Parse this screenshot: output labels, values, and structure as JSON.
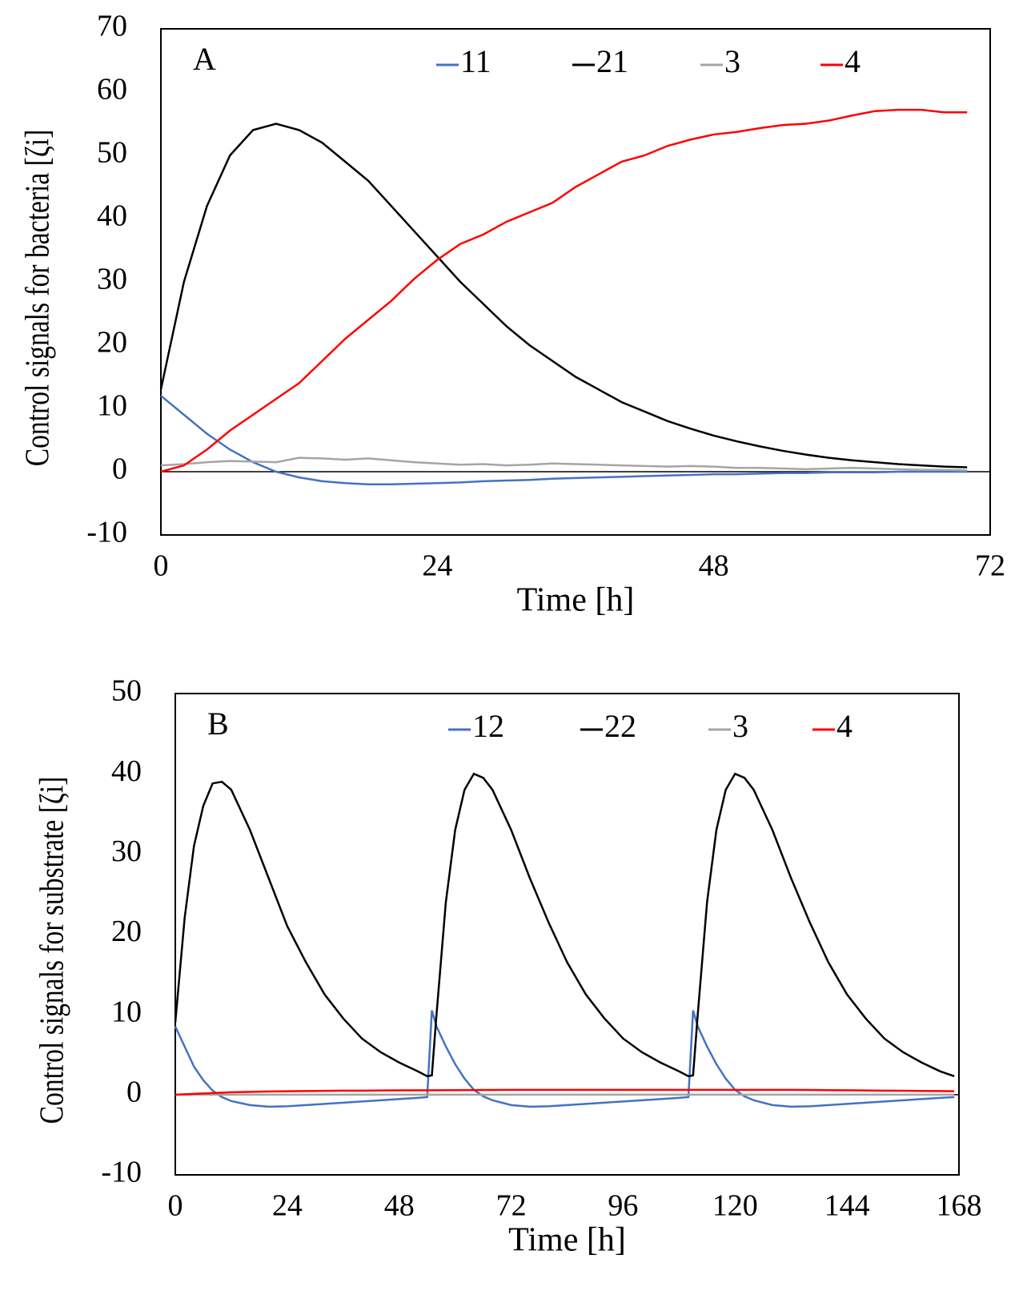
{
  "chart_data": [
    {
      "type": "line",
      "panel_label": "A",
      "xlabel": "Time [h]",
      "ylabel": "Control signals for bacteria [ζi]",
      "x": [
        0,
        2,
        4,
        6,
        8,
        10,
        12,
        14,
        16,
        18,
        20,
        22,
        24,
        26,
        28,
        30,
        32,
        34,
        36,
        38,
        40,
        42,
        44,
        46,
        48,
        50,
        52,
        54,
        56,
        58,
        60,
        62,
        64,
        66,
        68,
        70
      ],
      "series": [
        {
          "name": "11",
          "color": "#4472c4",
          "values": [
            12,
            9,
            6,
            3.5,
            1.5,
            0,
            -0.9,
            -1.5,
            -1.8,
            -2,
            -2,
            -1.9,
            -1.8,
            -1.7,
            -1.5,
            -1.4,
            -1.3,
            -1.1,
            -1,
            -0.9,
            -0.8,
            -0.7,
            -0.6,
            -0.5,
            -0.4,
            -0.4,
            -0.3,
            -0.2,
            -0.2,
            -0.1,
            -0.1,
            -0.1,
            0,
            0,
            0,
            0
          ]
        },
        {
          "name": "21",
          "color": "#000000",
          "values": [
            13,
            30,
            42,
            50,
            54,
            55,
            54,
            52,
            49,
            46,
            42,
            38,
            34,
            30,
            26.5,
            23,
            20,
            17.5,
            15,
            13,
            11,
            9.5,
            8,
            6.8,
            5.7,
            4.8,
            4,
            3.3,
            2.7,
            2.2,
            1.8,
            1.5,
            1.2,
            1,
            0.8,
            0.7
          ]
        },
        {
          "name": "3",
          "color": "#a5a5a5",
          "values": [
            1,
            1.2,
            1.5,
            1.7,
            1.6,
            1.5,
            2.2,
            2.1,
            1.9,
            2.1,
            1.8,
            1.5,
            1.3,
            1.1,
            1.2,
            1,
            1.1,
            1.3,
            1.2,
            1.1,
            1,
            0.9,
            0.8,
            0.9,
            0.8,
            0.6,
            0.6,
            0.5,
            0.4,
            0.5,
            0.6,
            0.5,
            0.4,
            0.3,
            0.3,
            0.2
          ]
        },
        {
          "name": "4",
          "color": "#ff0000",
          "values": [
            0,
            1,
            3.5,
            6.5,
            9,
            11.5,
            14,
            17.5,
            21,
            24,
            27,
            30.5,
            33.5,
            36,
            37.5,
            39.5,
            41,
            42.5,
            45,
            47,
            49,
            50,
            51.5,
            52.5,
            53.3,
            53.7,
            54.3,
            54.8,
            55,
            55.5,
            56.3,
            57,
            57.2,
            57.2,
            56.8,
            56.8
          ]
        }
      ],
      "xlim": [
        0,
        72
      ],
      "xticks": [
        0,
        24,
        48,
        72
      ],
      "ylim": [
        -10,
        70
      ],
      "yticks": [
        -10,
        0,
        10,
        20,
        30,
        40,
        50,
        60,
        70
      ]
    },
    {
      "type": "line",
      "panel_label": "B",
      "xlabel": "Time [h]",
      "ylabel": "Control signals for substrate [ζi]",
      "x": [
        0,
        2,
        4,
        6,
        8,
        10,
        12,
        16,
        20,
        24,
        28,
        32,
        36,
        40,
        44,
        48,
        52,
        54,
        55,
        56,
        58,
        60,
        62,
        64,
        66,
        68,
        72,
        76,
        80,
        84,
        88,
        92,
        96,
        100,
        104,
        108,
        110,
        111,
        112,
        114,
        116,
        118,
        120,
        122,
        124,
        128,
        132,
        136,
        140,
        144,
        148,
        152,
        156,
        160,
        164,
        167
      ],
      "series": [
        {
          "name": "12",
          "color": "#4472c4",
          "values": [
            8.5,
            6,
            3.5,
            1.8,
            0.5,
            -0.3,
            -0.8,
            -1.3,
            -1.5,
            -1.45,
            -1.3,
            -1.15,
            -1,
            -0.85,
            -0.7,
            -0.55,
            -0.4,
            -0.3,
            10.5,
            8.5,
            6,
            3.8,
            2,
            0.6,
            -0.2,
            -0.7,
            -1.3,
            -1.5,
            -1.45,
            -1.3,
            -1.15,
            -1,
            -0.85,
            -0.7,
            -0.55,
            -0.4,
            -0.3,
            10.5,
            8.5,
            6,
            3.8,
            2,
            0.6,
            -0.2,
            -0.7,
            -1.3,
            -1.5,
            -1.45,
            -1.3,
            -1.15,
            -1,
            -0.85,
            -0.7,
            -0.55,
            -0.4,
            -0.3
          ]
        },
        {
          "name": "22",
          "color": "#000000",
          "values": [
            9,
            22,
            31,
            36,
            38.8,
            39,
            38,
            33,
            27,
            21,
            16.5,
            12.5,
            9.5,
            7,
            5.3,
            4,
            2.9,
            2.3,
            2.4,
            10,
            24,
            33,
            38,
            40,
            39.5,
            38,
            33,
            27,
            21.5,
            16.5,
            12.5,
            9.5,
            7,
            5.3,
            4,
            2.9,
            2.3,
            2.4,
            10,
            24,
            33,
            38,
            40,
            39.5,
            38,
            33,
            27,
            21.5,
            16.5,
            12.5,
            9.5,
            7,
            5.3,
            4,
            2.9,
            2.3
          ]
        },
        {
          "name": "3",
          "color": "#a5a5a5",
          "values": [
            0,
            0,
            0,
            0,
            0,
            0,
            0,
            0,
            0,
            0,
            0,
            0,
            0,
            0,
            0,
            0,
            0,
            0,
            0,
            0,
            0,
            0,
            0,
            0,
            0,
            0,
            0,
            0,
            0,
            0,
            0,
            0,
            0,
            0,
            0,
            0,
            0,
            0,
            0,
            0,
            0,
            0,
            0,
            0,
            0,
            0,
            0,
            0,
            0,
            0,
            0,
            0,
            0,
            0,
            0,
            0
          ]
        },
        {
          "name": "4",
          "color": "#ff0000",
          "values": [
            0,
            0.05,
            0.1,
            0.15,
            0.2,
            0.25,
            0.3,
            0.35,
            0.4,
            0.42,
            0.45,
            0.47,
            0.5,
            0.5,
            0.52,
            0.53,
            0.55,
            0.55,
            0.55,
            0.55,
            0.56,
            0.56,
            0.57,
            0.57,
            0.58,
            0.58,
            0.6,
            0.6,
            0.6,
            0.6,
            0.6,
            0.6,
            0.6,
            0.6,
            0.6,
            0.6,
            0.6,
            0.6,
            0.6,
            0.6,
            0.6,
            0.6,
            0.6,
            0.6,
            0.6,
            0.6,
            0.6,
            0.58,
            0.56,
            0.54,
            0.52,
            0.5,
            0.48,
            0.46,
            0.44,
            0.42
          ]
        }
      ],
      "xlim": [
        0,
        168
      ],
      "xticks": [
        0,
        24,
        48,
        72,
        96,
        120,
        144,
        168
      ],
      "ylim": [
        -10,
        50
      ],
      "yticks": [
        -10,
        0,
        10,
        20,
        30,
        40,
        50
      ]
    }
  ]
}
